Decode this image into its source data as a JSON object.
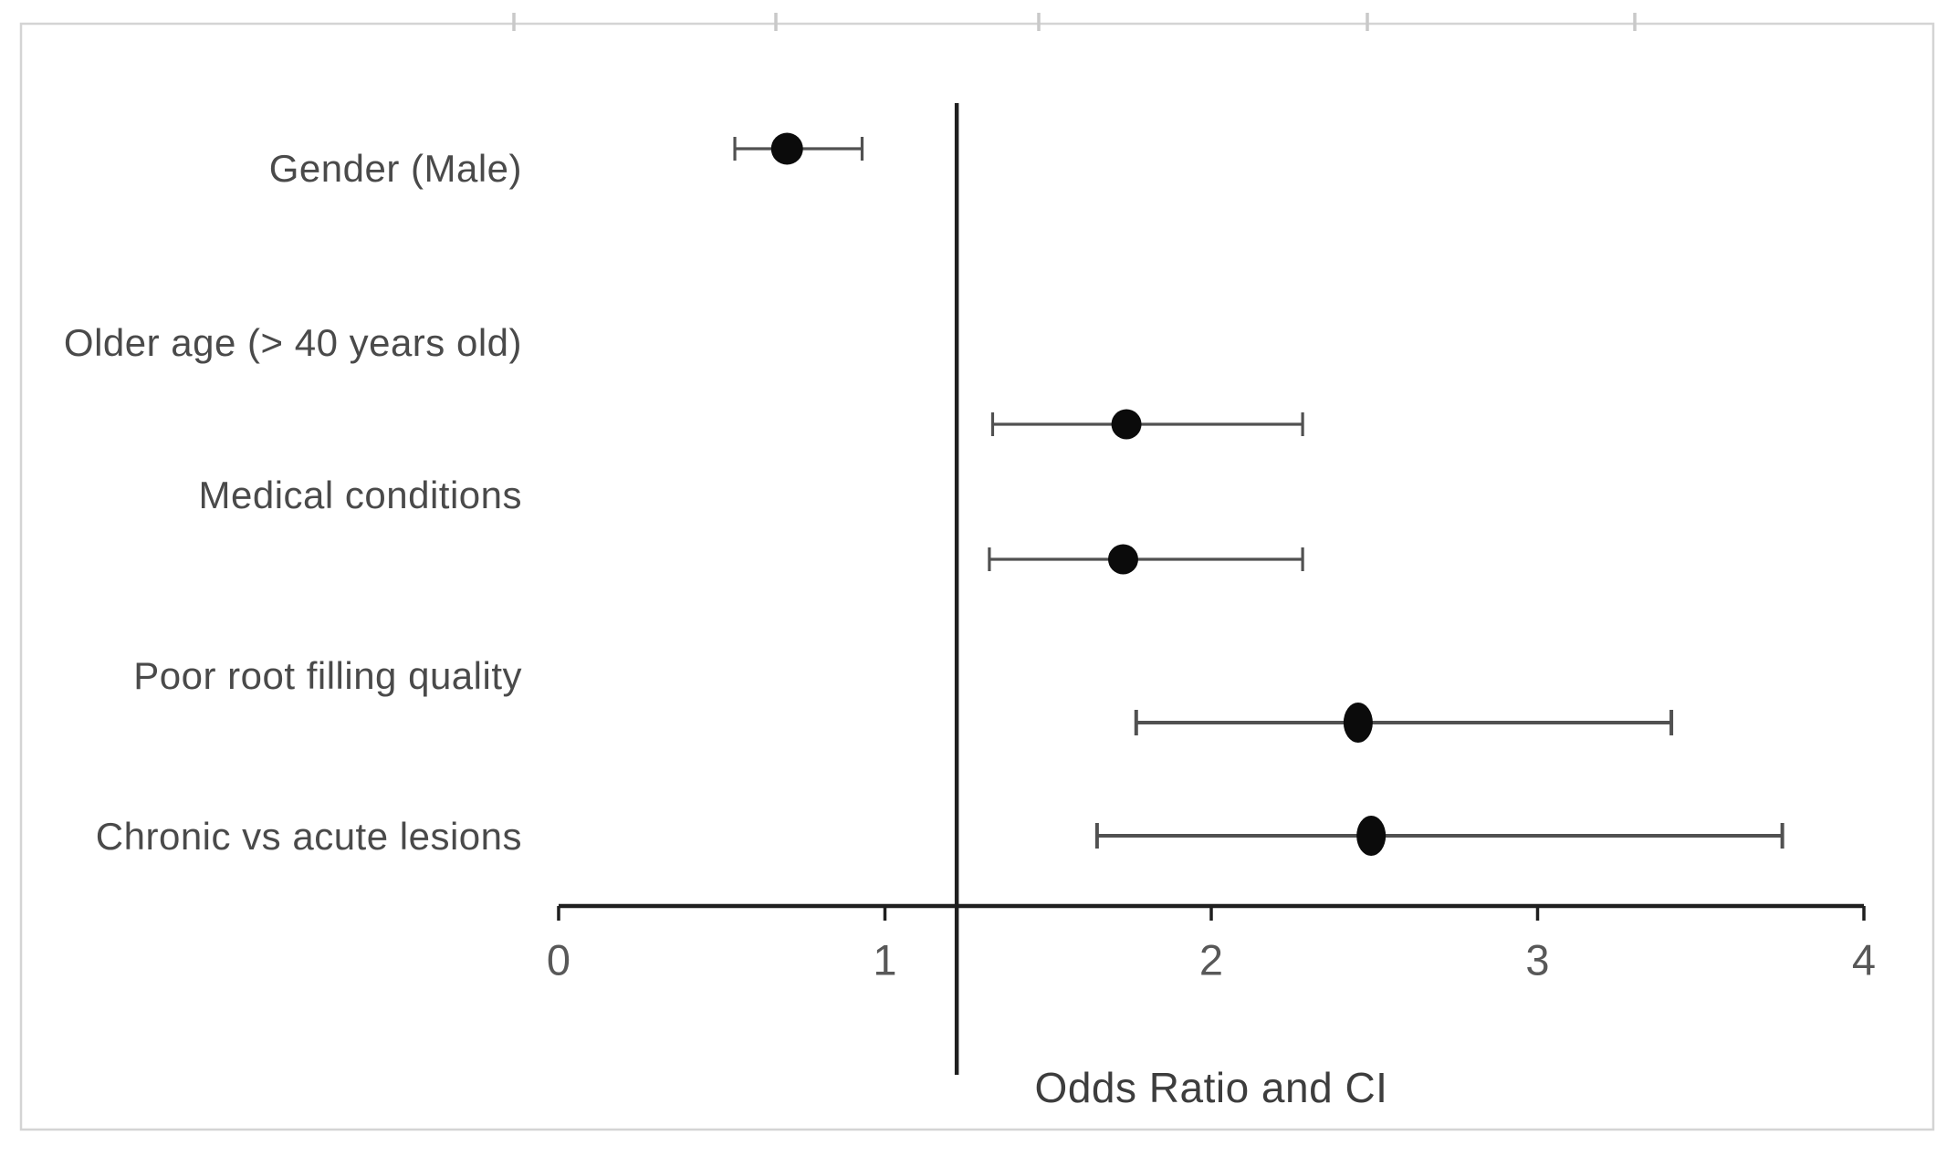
{
  "figure": {
    "background_color": "#ffffff",
    "border_color": "#d4d4d4"
  },
  "chart_data": {
    "type": "scatter",
    "subtype": "forest-plot-horizontal-error-bars",
    "title": "",
    "xlabel": "Odds Ratio and CI",
    "ylabel": "",
    "xlim": [
      0,
      4
    ],
    "xticks": [
      0,
      1,
      2,
      3,
      4
    ],
    "grid": false,
    "legend": false,
    "reference_line_x": 1.22,
    "marker_color": "#0b0b0b",
    "error_bar_color": "#515151",
    "axis_color": "#1f1f1f",
    "points": [
      {
        "label": "Gender (Male)",
        "or": 0.7,
        "ci_low": 0.54,
        "ci_high": 0.93
      },
      {
        "label": "Older age (> 40 years old)",
        "or": 1.74,
        "ci_low": 1.33,
        "ci_high": 2.28
      },
      {
        "label": "Medical conditions",
        "or": 1.73,
        "ci_low": 1.32,
        "ci_high": 2.28
      },
      {
        "label": "Poor root filling quality",
        "or": 2.45,
        "ci_low": 1.77,
        "ci_high": 3.41
      },
      {
        "label": "Chronic vs acute lesions",
        "or": 2.49,
        "ci_low": 1.65,
        "ci_high": 3.75
      }
    ]
  }
}
